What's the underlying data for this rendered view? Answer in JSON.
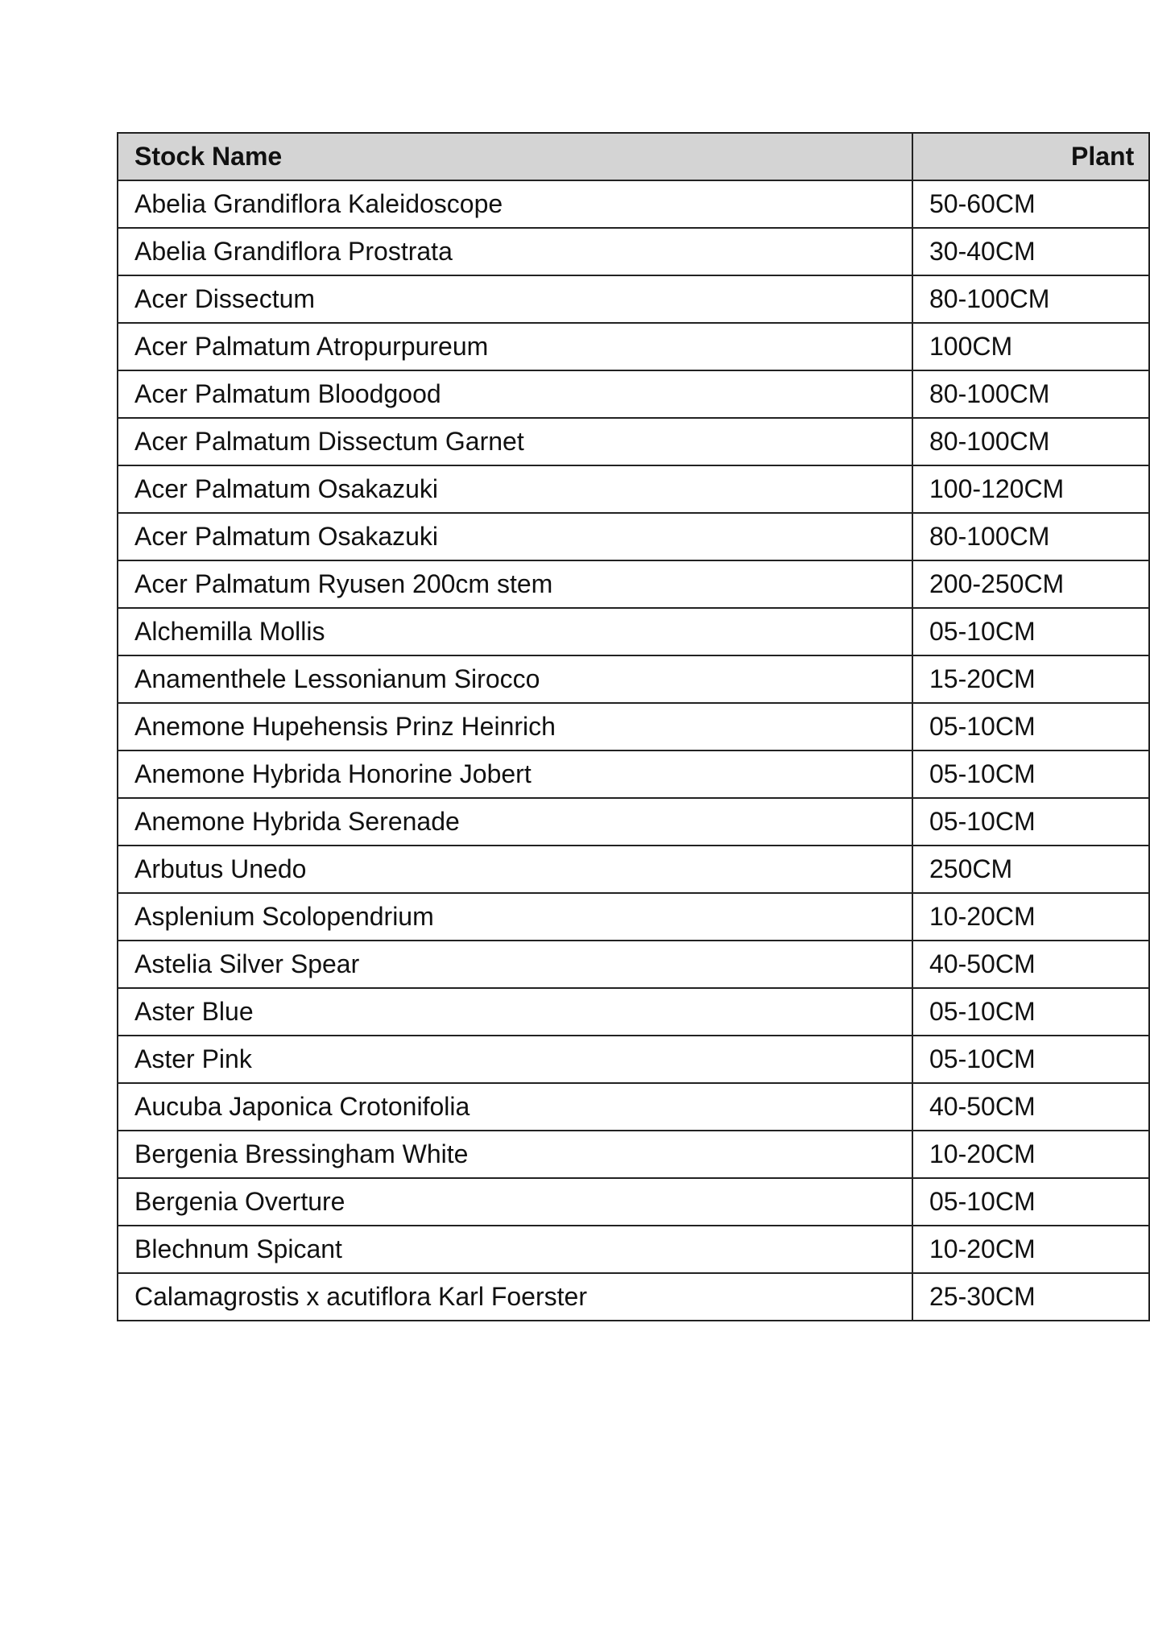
{
  "table": {
    "headers": [
      "Stock Name",
      "Plant"
    ],
    "rows": [
      [
        "Abelia Grandiflora Kaleidoscope",
        "50-60CM"
      ],
      [
        "Abelia Grandiflora Prostrata",
        "30-40CM"
      ],
      [
        "Acer Dissectum",
        "80-100CM"
      ],
      [
        "Acer Palmatum Atropurpureum",
        "100CM"
      ],
      [
        "Acer Palmatum Bloodgood",
        "80-100CM"
      ],
      [
        "Acer Palmatum Dissectum Garnet",
        "80-100CM"
      ],
      [
        "Acer Palmatum Osakazuki",
        "100-120CM"
      ],
      [
        "Acer Palmatum Osakazuki",
        "80-100CM"
      ],
      [
        "Acer Palmatum Ryusen 200cm stem",
        "200-250CM"
      ],
      [
        "Alchemilla Mollis",
        "05-10CM"
      ],
      [
        "Anamenthele Lessonianum Sirocco",
        "15-20CM"
      ],
      [
        "Anemone Hupehensis Prinz Heinrich",
        "05-10CM"
      ],
      [
        "Anemone Hybrida Honorine Jobert",
        "05-10CM"
      ],
      [
        "Anemone Hybrida Serenade",
        "05-10CM"
      ],
      [
        "Arbutus Unedo",
        "250CM"
      ],
      [
        "Asplenium Scolopendrium",
        "10-20CM"
      ],
      [
        "Astelia Silver Spear",
        "40-50CM"
      ],
      [
        "Aster Blue",
        "05-10CM"
      ],
      [
        "Aster Pink",
        "05-10CM"
      ],
      [
        "Aucuba Japonica Crotonifolia",
        "40-50CM"
      ],
      [
        "Bergenia Bressingham White",
        "10-20CM"
      ],
      [
        "Bergenia Overture",
        "05-10CM"
      ],
      [
        "Blechnum Spicant",
        "10-20CM"
      ],
      [
        "Calamagrostis x acutiflora Karl Foerster",
        "25-30CM"
      ]
    ]
  }
}
